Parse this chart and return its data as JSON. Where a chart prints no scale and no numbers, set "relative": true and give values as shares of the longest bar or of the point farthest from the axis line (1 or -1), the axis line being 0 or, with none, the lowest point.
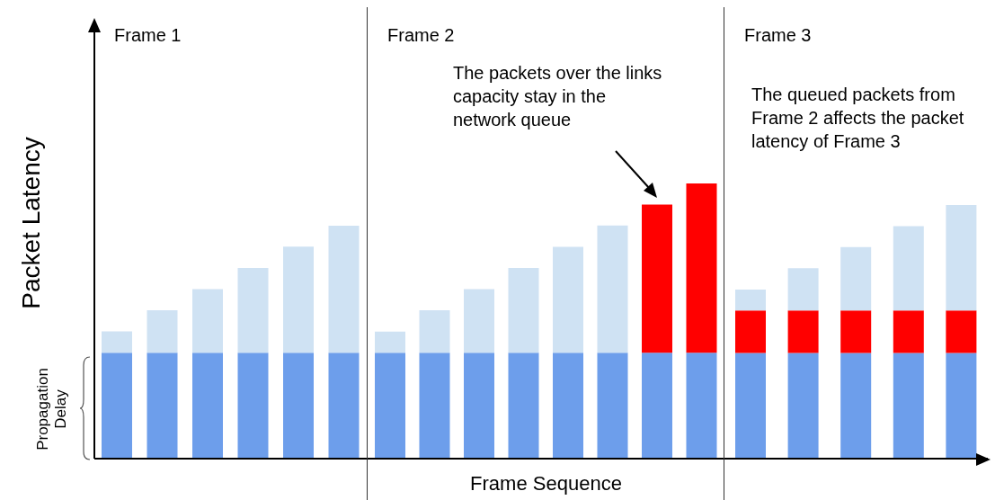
{
  "chart_data": [
    {
      "type": "bar",
      "title": "Frame 1",
      "ylabel": "Packet Latency",
      "annotations": [
        "Propagation Delay"
      ],
      "relative": true,
      "stacked": true,
      "tick_labels": false,
      "categories": [
        null,
        null,
        null,
        null,
        null,
        null
      ],
      "series": [
        {
          "color": "#6d9eeb",
          "values": [
            0.455,
            0.455,
            0.455,
            0.455,
            0.455,
            0.455
          ]
        },
        {
          "color": "#cfe2f3",
          "values": [
            0.091,
            0.182,
            0.273,
            0.364,
            0.455,
            0.545
          ]
        }
      ]
    },
    {
      "type": "bar",
      "title": "Frame 2",
      "xlabel": "Frame Sequence",
      "annotations": [
        "The packets over the links capacity stay in the network queue"
      ],
      "relative": true,
      "stacked": true,
      "tick_labels": false,
      "categories": [
        null,
        null,
        null,
        null,
        null,
        null,
        null,
        null
      ],
      "series": [
        {
          "color": "#6d9eeb",
          "values": [
            0.385,
            0.385,
            0.385,
            0.385,
            0.385,
            0.385,
            0.385,
            0.385
          ]
        },
        {
          "color": "#cfe2f3",
          "values": [
            0.077,
            0.154,
            0.231,
            0.308,
            0.385,
            0.462,
            null,
            null
          ]
        },
        {
          "color": "#ff0000",
          "values": [
            null,
            null,
            null,
            null,
            null,
            null,
            0.538,
            0.615
          ]
        }
      ]
    },
    {
      "type": "bar",
      "title": "Frame 3",
      "annotations": [
        "The queued packets from Frame 2 affects the packet latency of Frame 3"
      ],
      "relative": true,
      "stacked": true,
      "tick_labels": false,
      "categories": [
        null,
        null,
        null,
        null,
        null
      ],
      "series": [
        {
          "color": "#6d9eeb",
          "values": [
            0.417,
            0.417,
            0.417,
            0.417,
            0.417
          ]
        },
        {
          "color": "#ff0000",
          "values": [
            0.167,
            0.167,
            0.167,
            0.167,
            0.167
          ]
        },
        {
          "color": "#cfe2f3",
          "values": [
            0.083,
            0.167,
            0.25,
            0.333,
            0.416
          ]
        }
      ]
    }
  ]
}
